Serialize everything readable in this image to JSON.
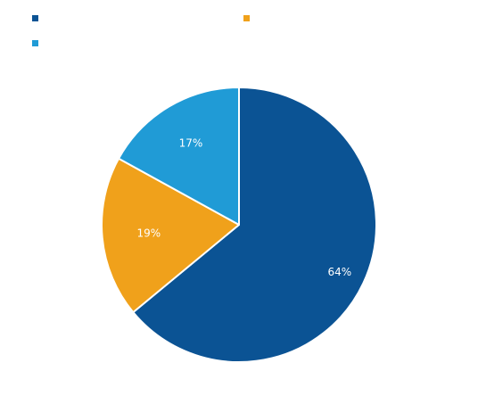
{
  "chart_data": {
    "type": "pie",
    "title": "",
    "series": [
      {
        "name": "",
        "value": 64,
        "label": "64%",
        "color": "#0b5394"
      },
      {
        "name": "",
        "value": 19,
        "label": "19%",
        "color": "#f0a11b"
      },
      {
        "name": "",
        "value": 17,
        "label": "17%",
        "color": "#209bd6"
      }
    ],
    "start_angle_deg": 0,
    "direction": "clockwise",
    "slice_border_color": "#ffffff",
    "legend_position": "top"
  }
}
